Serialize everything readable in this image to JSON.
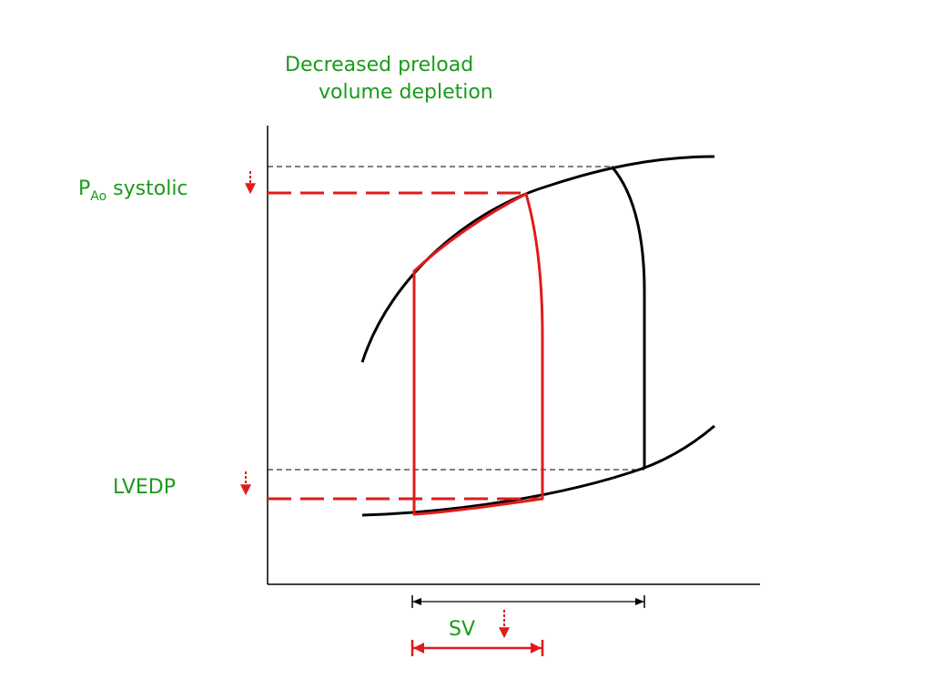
{
  "title": {
    "line1": "Decreased preload",
    "line2": "volume depletion"
  },
  "labels": {
    "pao_main": "P",
    "pao_sub": "Ao",
    "pao_suffix": " systolic",
    "lvedp": "LVEDP",
    "sv": "SV"
  },
  "colors": {
    "label_green": "#1a9a1a",
    "baseline_loop": "#000000",
    "decreased_loop": "#e01b1b"
  },
  "arrows": {
    "pao_systolic": "decrease",
    "lvedp": "decrease",
    "sv": "decrease"
  }
}
